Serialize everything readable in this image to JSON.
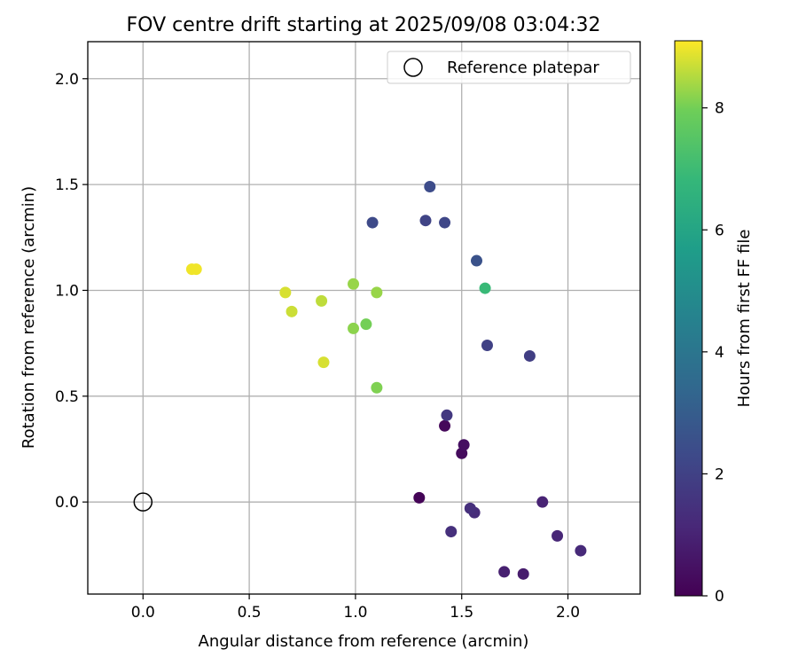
{
  "chart_data": {
    "type": "scatter",
    "title": "FOV centre drift starting at 2025/09/08 03:04:32",
    "xlabel": "Angular distance from reference (arcmin)",
    "ylabel": "Rotation from reference (arcmin)",
    "xlim": [
      -0.26,
      2.34
    ],
    "ylim": [
      -0.435,
      2.175
    ],
    "xticks": [
      0.0,
      0.5,
      1.0,
      1.5,
      2.0
    ],
    "yticks": [
      0.0,
      0.5,
      1.0,
      1.5,
      2.0
    ],
    "xtick_labels": [
      "0.0",
      "0.5",
      "1.0",
      "1.5",
      "2.0"
    ],
    "ytick_labels": [
      "0.0",
      "0.5",
      "1.0",
      "1.5",
      "2.0"
    ],
    "grid": true,
    "legend": {
      "placement": "top-right",
      "entries": [
        "Reference platepar"
      ]
    },
    "reference_point": {
      "x": 0.0,
      "y": 0.0
    },
    "colorbar": {
      "label": "Hours from first FF file",
      "range": [
        0,
        9.1
      ],
      "ticks": [
        0,
        2,
        4,
        6,
        8
      ],
      "tick_labels": [
        "0",
        "2",
        "4",
        "6",
        "8"
      ],
      "colormap": "viridis"
    },
    "points": [
      {
        "x": 1.3,
        "y": 0.02,
        "hours": 0.1
      },
      {
        "x": 1.42,
        "y": 0.36,
        "hours": 0.2
      },
      {
        "x": 1.5,
        "y": 0.23,
        "hours": 0.3
      },
      {
        "x": 1.51,
        "y": 0.27,
        "hours": 0.4
      },
      {
        "x": 1.79,
        "y": -0.34,
        "hours": 0.8
      },
      {
        "x": 1.7,
        "y": -0.33,
        "hours": 0.9
      },
      {
        "x": 1.88,
        "y": 0.0,
        "hours": 1.0
      },
      {
        "x": 1.95,
        "y": -0.16,
        "hours": 1.1
      },
      {
        "x": 2.06,
        "y": -0.23,
        "hours": 1.2
      },
      {
        "x": 1.56,
        "y": -0.05,
        "hours": 1.3
      },
      {
        "x": 1.54,
        "y": -0.03,
        "hours": 1.4
      },
      {
        "x": 1.45,
        "y": -0.14,
        "hours": 1.4
      },
      {
        "x": 1.43,
        "y": 0.41,
        "hours": 1.7
      },
      {
        "x": 1.82,
        "y": 0.69,
        "hours": 1.9
      },
      {
        "x": 1.62,
        "y": 0.74,
        "hours": 2.0
      },
      {
        "x": 1.33,
        "y": 1.33,
        "hours": 2.1
      },
      {
        "x": 1.42,
        "y": 1.32,
        "hours": 2.2
      },
      {
        "x": 1.08,
        "y": 1.32,
        "hours": 2.3
      },
      {
        "x": 1.35,
        "y": 1.49,
        "hours": 2.4
      },
      {
        "x": 1.57,
        "y": 1.14,
        "hours": 2.6
      },
      {
        "x": 1.61,
        "y": 1.01,
        "hours": 6.9
      },
      {
        "x": 1.1,
        "y": 0.54,
        "hours": 8.1
      },
      {
        "x": 1.05,
        "y": 0.84,
        "hours": 8.0
      },
      {
        "x": 0.99,
        "y": 0.82,
        "hours": 8.2
      },
      {
        "x": 0.99,
        "y": 1.03,
        "hours": 8.3
      },
      {
        "x": 1.1,
        "y": 0.99,
        "hours": 8.3
      },
      {
        "x": 0.84,
        "y": 0.95,
        "hours": 8.6
      },
      {
        "x": 0.85,
        "y": 0.66,
        "hours": 8.8
      },
      {
        "x": 0.7,
        "y": 0.9,
        "hours": 8.7
      },
      {
        "x": 0.67,
        "y": 0.99,
        "hours": 8.8
      },
      {
        "x": 0.23,
        "y": 1.1,
        "hours": 9.0
      },
      {
        "x": 0.25,
        "y": 1.1,
        "hours": 9.0
      }
    ]
  }
}
